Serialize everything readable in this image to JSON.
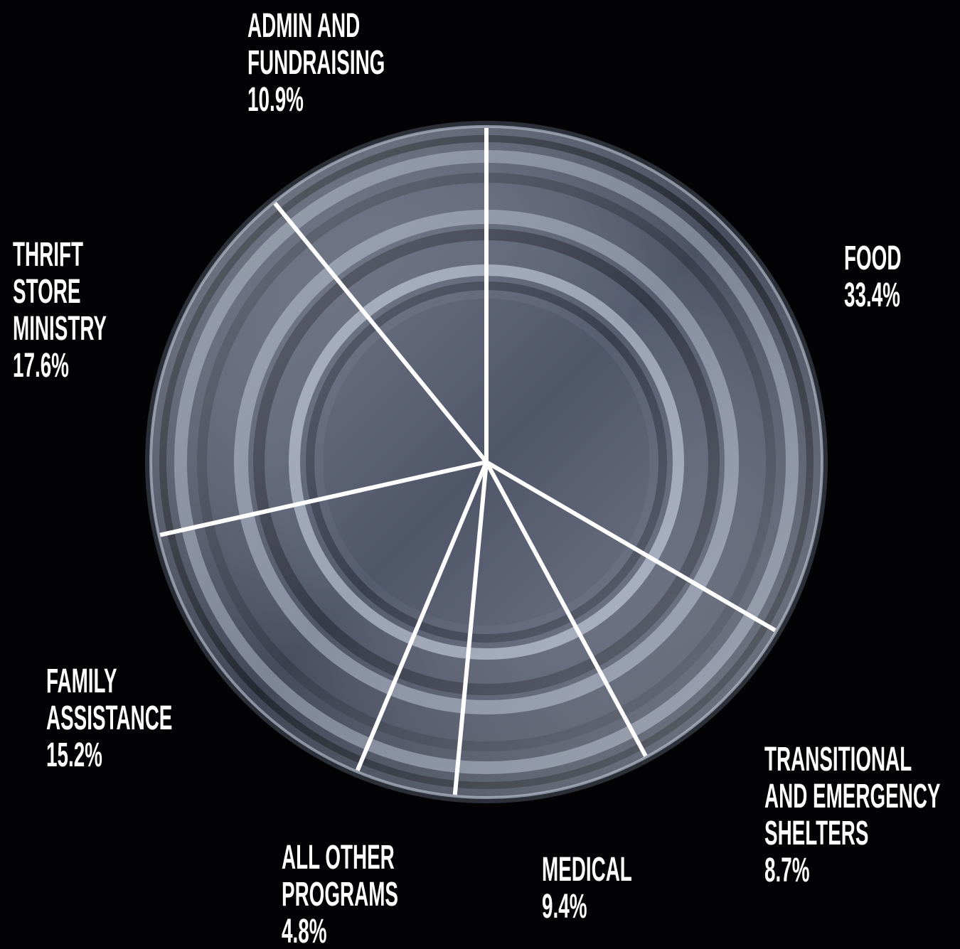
{
  "chart_data": {
    "type": "pie",
    "categories": [
      "FOOD",
      "TRANSITIONAL AND EMERGENCY SHELTERS",
      "MEDICAL",
      "ALL OTHER PROGRAMS",
      "FAMILY ASSISTANCE",
      "THRIFT STORE MINISTRY",
      "ADMIN AND FUNDRAISING"
    ],
    "values": [
      33.4,
      8.7,
      9.4,
      4.8,
      15.2,
      17.6,
      10.9
    ],
    "value_labels": [
      "33.4%",
      "8.7%",
      "9.4%",
      "4.8%",
      "15.2%",
      "17.6%",
      "10.9%"
    ]
  }
}
